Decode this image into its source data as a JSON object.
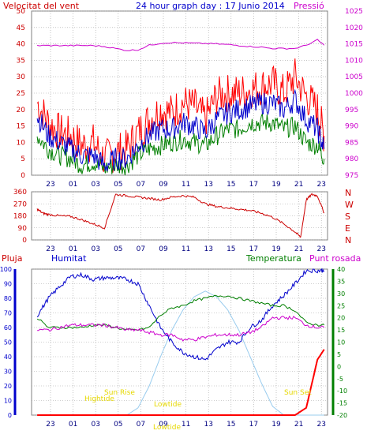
{
  "header": {
    "left_title": "Velocitat del vent",
    "center_title": "24 hour graph day : 17 Junio 2014",
    "right_title": "Pressió"
  },
  "lower_labels": {
    "rain": "Pluja",
    "humidity": "Humitat",
    "temperature": "Temperatura",
    "dew_point": "Punt rosada"
  },
  "annotations": {
    "hightide": "Hightide",
    "sunrise": "Sun Rise",
    "lowtide_1": "Lowtide",
    "lowtide_2": "Lowtide",
    "sunset": "Sun Set"
  },
  "colors": {
    "wind_gust": "#ff0000",
    "wind_avg": "#0000cc",
    "wind_low": "#007f00",
    "pressure": "#cc00cc",
    "direction": "#cc0000",
    "humidity": "#0000cc",
    "temperature": "#007f00",
    "dew_point": "#cc00cc",
    "rain": "#ff0000",
    "solar": "#99ccee",
    "grid": "#a0a0a0",
    "axis_wind": "#cc0000",
    "axis_pressure": "#cc00cc",
    "axis_humidity": "#0000cc",
    "axis_temperature": "#007f00",
    "annotation": "#e6d800"
  },
  "chart_data": [
    {
      "type": "line",
      "x_ticks": [
        "23",
        "01",
        "03",
        "05",
        "07",
        "09",
        "11",
        "13",
        "15",
        "17",
        "19",
        "21",
        "23"
      ],
      "y_left_ticks": [
        "0",
        "5",
        "10",
        "15",
        "20",
        "25",
        "30",
        "35",
        "40",
        "45",
        "50"
      ],
      "y_right_ticks": [
        "975",
        "980",
        "985",
        "990",
        "995",
        "1000",
        "1005",
        "1010",
        "1015",
        "1020",
        "1025"
      ],
      "ylim_left": [
        0,
        50
      ],
      "ylim_right": [
        975,
        1025
      ],
      "hours": [
        22,
        23,
        0,
        1,
        2,
        3,
        4,
        5,
        6,
        7,
        8,
        9,
        10,
        11,
        12,
        13,
        14,
        15,
        16,
        17,
        18,
        19,
        20,
        21,
        22,
        23,
        23.6
      ],
      "series": [
        {
          "axis": "left",
          "values": [
            22,
            16,
            13,
            12,
            9,
            10,
            5,
            7,
            8,
            13,
            17,
            20,
            19,
            22,
            21,
            17,
            24,
            25,
            25,
            26,
            27,
            28,
            25,
            30,
            24,
            20,
            12
          ]
        },
        {
          "axis": "left",
          "values": [
            18,
            12,
            10,
            8,
            6,
            6,
            3,
            5,
            5,
            9,
            12,
            14,
            14,
            16,
            15,
            13,
            17,
            19,
            20,
            21,
            22,
            22,
            20,
            23,
            17,
            14,
            8
          ]
        },
        {
          "axis": "left",
          "values": [
            12,
            8,
            6,
            5,
            3,
            4,
            2,
            3,
            3,
            6,
            8,
            9,
            10,
            11,
            10,
            9,
            12,
            14,
            14,
            16,
            16,
            16,
            14,
            15,
            10,
            9,
            5
          ]
        },
        {
          "axis": "right",
          "values": [
            1014.5,
            1014.5,
            1014.5,
            1014.5,
            1014.5,
            1014.5,
            1014.2,
            1013.6,
            1013.0,
            1013.2,
            1014.6,
            1015.2,
            1015.4,
            1015.3,
            1015.2,
            1015.1,
            1015.0,
            1014.8,
            1014.5,
            1014.2,
            1014.0,
            1013.6,
            1013.6,
            1013.6,
            1014.6,
            1016.2,
            1014.6
          ]
        }
      ]
    },
    {
      "type": "line",
      "y_ticks": [
        "0",
        "90",
        "180",
        "270",
        "360"
      ],
      "y_right_ticks": [
        "N",
        "W",
        "S",
        "E",
        "N"
      ],
      "ylim": [
        0,
        360
      ],
      "hours": [
        22,
        22.5,
        23,
        0,
        1,
        2,
        3,
        4,
        5,
        6,
        7,
        8,
        9,
        10,
        11,
        12,
        13,
        14,
        15,
        16,
        17,
        18,
        19,
        20,
        21,
        21.5,
        22,
        22.5,
        23,
        23.6
      ],
      "values": [
        230,
        200,
        190,
        180,
        175,
        150,
        120,
        90,
        340,
        330,
        320,
        310,
        300,
        320,
        330,
        320,
        270,
        250,
        240,
        230,
        220,
        200,
        170,
        120,
        60,
        20,
        300,
        340,
        330,
        200
      ]
    },
    {
      "type": "line",
      "y_left_ticks": [
        "0",
        "10",
        "20",
        "30",
        "40",
        "50",
        "60",
        "70",
        "80",
        "90",
        "100"
      ],
      "y_right_ticks": [
        "-20",
        "-15",
        "-10",
        "-5",
        "0",
        "5",
        "10",
        "15",
        "20",
        "25",
        "30",
        "35",
        "40"
      ],
      "ylim_left": [
        0,
        100
      ],
      "ylim_right": [
        -20,
        40
      ],
      "hours": [
        22,
        23,
        0,
        1,
        2,
        3,
        4,
        5,
        6,
        7,
        8,
        9,
        10,
        11,
        12,
        13,
        14,
        15,
        16,
        17,
        18,
        19,
        20,
        21,
        22,
        23,
        23.6
      ],
      "series": [
        {
          "axis": "left",
          "values": [
            68,
            80,
            88,
            95,
            96,
            93,
            94,
            94,
            93,
            90,
            75,
            60,
            50,
            43,
            40,
            38,
            45,
            50,
            50,
            60,
            65,
            75,
            82,
            90,
            99,
            99,
            99
          ]
        },
        {
          "axis": "right",
          "values": [
            20,
            16,
            16,
            16,
            16,
            17,
            17,
            16,
            15,
            15,
            16,
            21,
            24,
            25,
            27,
            28,
            29,
            29,
            28,
            27,
            26,
            25,
            25,
            23,
            18,
            17,
            17
          ]
        },
        {
          "axis": "right",
          "values": [
            15,
            15,
            16,
            17,
            17,
            17,
            17,
            16,
            15,
            15,
            14,
            13,
            13,
            11,
            11,
            12,
            13,
            13,
            13,
            14,
            16,
            20,
            20,
            20,
            17,
            16,
            16
          ]
        },
        {
          "axis": "left",
          "values": [
            0,
            0,
            0,
            0,
            0,
            0,
            0,
            0,
            0,
            0,
            0,
            0,
            0,
            0,
            0,
            0,
            0,
            0,
            0,
            0,
            0,
            0,
            0,
            0,
            5,
            38,
            45
          ]
        },
        {
          "axis": "left",
          "values": [
            0,
            0,
            0,
            0,
            0,
            0,
            0,
            0,
            0,
            5,
            20,
            40,
            58,
            72,
            81,
            85,
            81,
            72,
            58,
            40,
            22,
            6,
            0,
            0,
            0,
            0,
            0
          ]
        }
      ]
    }
  ]
}
